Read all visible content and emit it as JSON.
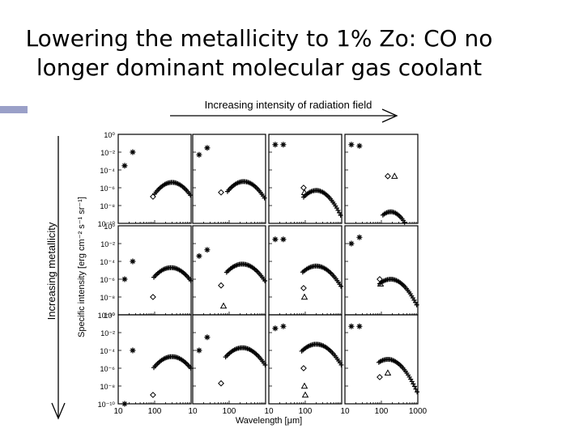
{
  "slide": {
    "title_line1": "Lowering the metallicity to 1% Zo: CO no",
    "title_line2": "longer dominant molecular gas coolant"
  },
  "figure": {
    "top_arrow_label": "Increasing intensity of radiation field",
    "left_arrow_label": "Increasing metallicity",
    "ylabel": "Specific intensity [erg cm⁻² s⁻¹ sr⁻¹]",
    "xlabel": "Wavelength [μm]",
    "x_tick_labels": [
      "10",
      "100",
      "10",
      "100",
      "10",
      "100",
      "10",
      "100",
      "1000"
    ],
    "y_tick_labels": [
      "10⁰",
      "10⁻²",
      "10⁻⁴",
      "10⁻⁶",
      "10⁻⁸",
      "10⁻¹⁰"
    ]
  },
  "chart_data": {
    "type": "scatter",
    "grid_rows": 3,
    "grid_cols": 4,
    "xscale": "log",
    "yscale": "log",
    "xlim": [
      10,
      1000
    ],
    "ylim": [
      1e-10,
      1
    ],
    "panels": [
      {
        "row": 0,
        "col": 0,
        "stars": [
          [
            25,
            0.01
          ],
          [
            15,
            0.0003
          ]
        ],
        "diamonds": [
          [
            90,
            1e-07
          ]
        ],
        "triangles": [],
        "peak": [
          300,
          4e-06
        ],
        "width": 0.42,
        "start": 100
      },
      {
        "row": 0,
        "col": 1,
        "stars": [
          [
            25,
            0.03
          ],
          [
            15,
            0.005
          ]
        ],
        "diamonds": [
          [
            60,
            3e-07
          ]
        ],
        "triangles": [],
        "peak": [
          250,
          5e-06
        ],
        "width": 0.42,
        "start": 90
      },
      {
        "row": 0,
        "col": 2,
        "stars": [
          [
            15,
            0.07
          ],
          [
            25,
            0.07
          ]
        ],
        "diamonds": [
          [
            90,
            1e-06
          ]
        ],
        "triangles": [
          [
            95,
            3e-07
          ]
        ],
        "peak": [
          200,
          5e-07
        ],
        "width": 0.4,
        "start": 90
      },
      {
        "row": 0,
        "col": 3,
        "stars": [
          [
            15,
            0.07
          ],
          [
            25,
            0.05
          ]
        ],
        "diamonds": [
          [
            150,
            2e-05
          ]
        ],
        "triangles": [
          [
            230,
            2e-05
          ]
        ],
        "peak": [
          180,
          2e-09
        ],
        "width": 0.35,
        "start": 110
      },
      {
        "row": 1,
        "col": 0,
        "stars": [
          [
            25,
            0.0001
          ],
          [
            15,
            1e-06
          ]
        ],
        "diamonds": [
          [
            90,
            1e-08
          ]
        ],
        "triangles": [],
        "peak": [
          280,
          2e-05
        ],
        "width": 0.45,
        "start": 95
      },
      {
        "row": 1,
        "col": 1,
        "stars": [
          [
            25,
            0.002
          ],
          [
            15,
            0.0004
          ]
        ],
        "diamonds": [
          [
            60,
            2e-07
          ]
        ],
        "triangles": [
          [
            70,
            1e-09
          ]
        ],
        "peak": [
          230,
          5e-05
        ],
        "width": 0.45,
        "start": 85
      },
      {
        "row": 1,
        "col": 2,
        "stars": [
          [
            15,
            0.03
          ],
          [
            25,
            0.03
          ]
        ],
        "diamonds": [
          [
            90,
            1e-07
          ]
        ],
        "triangles": [
          [
            95,
            1e-08
          ]
        ],
        "peak": [
          200,
          3e-05
        ],
        "width": 0.45,
        "start": 85
      },
      {
        "row": 1,
        "col": 3,
        "stars": [
          [
            15,
            0.01
          ],
          [
            25,
            0.05
          ]
        ],
        "diamonds": [
          [
            90,
            1e-06
          ]
        ],
        "triangles": [
          [
            95,
            3e-07
          ]
        ],
        "peak": [
          180,
          1e-06
        ],
        "width": 0.42,
        "start": 90
      },
      {
        "row": 2,
        "col": 0,
        "stars": [
          [
            25,
            0.0001
          ],
          [
            15,
            1e-10
          ]
        ],
        "diamonds": [
          [
            90,
            1e-09
          ]
        ],
        "triangles": [],
        "peak": [
          300,
          2e-05
        ],
        "width": 0.45,
        "start": 95
      },
      {
        "row": 2,
        "col": 1,
        "stars": [
          [
            25,
            0.003
          ],
          [
            15,
            0.0001
          ]
        ],
        "diamonds": [
          [
            60,
            2e-08
          ]
        ],
        "triangles": [],
        "peak": [
          230,
          0.0002
        ],
        "width": 0.45,
        "start": 80
      },
      {
        "row": 2,
        "col": 2,
        "stars": [
          [
            15,
            0.03
          ],
          [
            25,
            0.05
          ]
        ],
        "diamonds": [
          [
            90,
            1e-06
          ]
        ],
        "triangles": [
          [
            95,
            1e-08
          ],
          [
            100,
            1e-09
          ]
        ],
        "peak": [
          200,
          0.0005
        ],
        "width": 0.45,
        "start": 80
      },
      {
        "row": 2,
        "col": 3,
        "stars": [
          [
            15,
            0.05
          ],
          [
            25,
            0.05
          ]
        ],
        "diamonds": [
          [
            90,
            1e-07
          ]
        ],
        "triangles": [
          [
            150,
            3e-07
          ]
        ],
        "peak": [
          150,
          1e-05
        ],
        "width": 0.42,
        "start": 85
      }
    ]
  }
}
